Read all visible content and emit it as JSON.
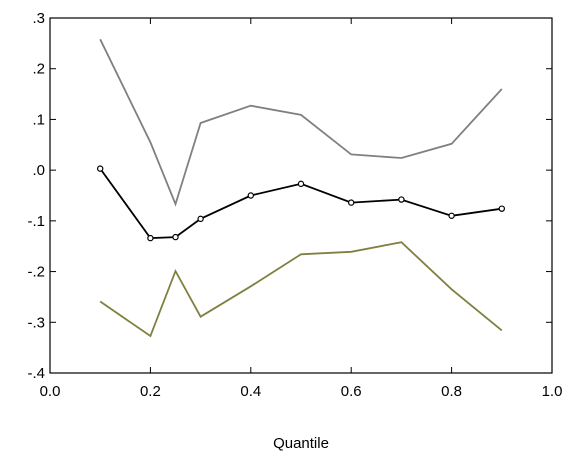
{
  "chart_data": {
    "type": "line",
    "title": "",
    "xlabel": "Quantile",
    "ylabel": "",
    "xlim": [
      0.0,
      1.0
    ],
    "ylim": [
      -0.4,
      0.3
    ],
    "x_ticks": [
      0.0,
      0.2,
      0.4,
      0.6,
      0.8,
      1.0
    ],
    "x_tick_labels": [
      "0.0",
      "0.2",
      "0.4",
      "0.6",
      "0.8",
      "1.0"
    ],
    "y_ticks": [
      0.3,
      0.2,
      0.1,
      0.0,
      -0.1,
      -0.2,
      -0.3,
      -0.4
    ],
    "y_tick_labels": [
      ".3",
      ".2",
      ".1",
      ".0",
      "-.1",
      "-.2",
      "-.3",
      "-.4"
    ],
    "grid": false,
    "series": [
      {
        "color": "#808080",
        "markers": false,
        "x": [
          0.1,
          0.2,
          0.25,
          0.3,
          0.4,
          0.5,
          0.6,
          0.7,
          0.8,
          0.9
        ],
        "y": [
          0.258,
          0.055,
          -0.067,
          0.093,
          0.127,
          0.109,
          0.031,
          0.024,
          0.052,
          0.16
        ]
      },
      {
        "color": "#000000",
        "markers": true,
        "x": [
          0.1,
          0.2,
          0.25,
          0.3,
          0.4,
          0.5,
          0.6,
          0.7,
          0.8,
          0.9
        ],
        "y": [
          0.003,
          -0.134,
          -0.132,
          -0.096,
          -0.05,
          -0.027,
          -0.064,
          -0.058,
          -0.09,
          -0.076
        ]
      },
      {
        "color": "#808040",
        "markers": false,
        "x": [
          0.1,
          0.2,
          0.25,
          0.3,
          0.4,
          0.5,
          0.6,
          0.7,
          0.8,
          0.9
        ],
        "y": [
          -0.259,
          -0.327,
          -0.199,
          -0.289,
          -0.229,
          -0.166,
          -0.161,
          -0.142,
          -0.235,
          -0.316
        ]
      }
    ]
  }
}
